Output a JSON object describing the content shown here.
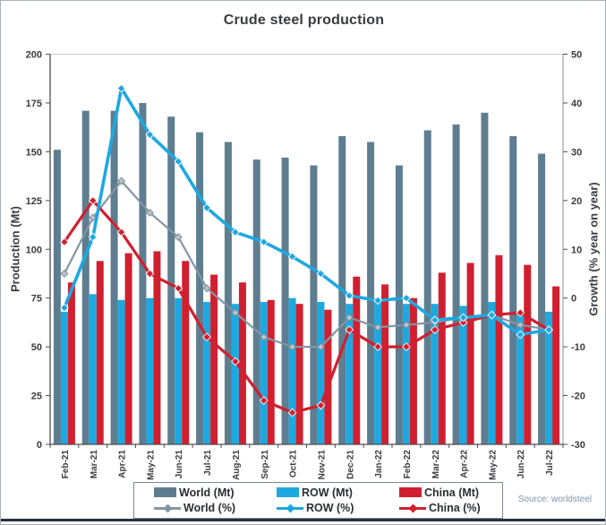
{
  "chart_data": {
    "type": "bar+line",
    "title": "Crude steel production",
    "source_note": "Source: worldsteel",
    "categories": [
      "Feb-21",
      "Mar-21",
      "Apr-21",
      "May-21",
      "Jun-21",
      "Jul-21",
      "Aug-21",
      "Sep-21",
      "Oct-21",
      "Nov-21",
      "Dec-21",
      "Jan-22",
      "Feb-22",
      "Mar-22",
      "Apr-22",
      "May-22",
      "Jun-22",
      "Jul-22"
    ],
    "left_axis": {
      "label": "Production (Mt)",
      "min": 0,
      "max": 200,
      "ticks": [
        0,
        25,
        50,
        75,
        100,
        125,
        150,
        175,
        200
      ]
    },
    "right_axis": {
      "label": "Growth (% year on year)",
      "min": -30,
      "max": 50,
      "ticks": [
        -30,
        -20,
        -10,
        0,
        10,
        20,
        30,
        40,
        50
      ]
    },
    "grid": "top line only",
    "legend_position": "bottom",
    "series": [
      {
        "name": "World (Mt)",
        "type": "bar",
        "axis": "left",
        "color": "#5e7d90",
        "values": [
          151,
          171,
          171,
          175,
          168,
          160,
          155,
          146,
          147,
          143,
          158,
          155,
          143,
          161,
          164,
          170,
          158,
          149
        ]
      },
      {
        "name": "ROW (Mt)",
        "type": "bar",
        "axis": "left",
        "color": "#1ea8e0",
        "values": [
          68,
          77,
          74,
          75,
          75,
          73,
          72,
          73,
          75,
          73,
          72,
          74,
          72,
          72,
          71,
          73,
          68,
          68
        ]
      },
      {
        "name": "China (Mt)",
        "type": "bar",
        "axis": "left",
        "color": "#d02030",
        "values": [
          83,
          94,
          98,
          99,
          94,
          87,
          83,
          74,
          72,
          69,
          86,
          82,
          75,
          88,
          93,
          97,
          92,
          81
        ]
      },
      {
        "name": "World (%)",
        "type": "line",
        "axis": "right",
        "color": "#8496a4",
        "marker_fill": "#b9c3cc",
        "marker_edge": "#77858f",
        "line_width": 2.2,
        "values": [
          5,
          16.5,
          24,
          17.5,
          12.5,
          2,
          -3,
          -8,
          -10,
          -10,
          -4,
          -6,
          -5.5,
          -5,
          -4,
          -3.5,
          -5.5,
          -6.5
        ]
      },
      {
        "name": "ROW (%)",
        "type": "line",
        "axis": "right",
        "color": "#1ea8e0",
        "marker_fill": "#1ea8e0",
        "marker_edge": "#ffffff",
        "line_width": 3.6,
        "values": [
          -2,
          12.5,
          43,
          33.5,
          28,
          18.5,
          13.5,
          11.5,
          8.5,
          5,
          0.5,
          -0.5,
          0,
          -4.5,
          -4,
          -3.5,
          -7.5,
          -6.5
        ]
      },
      {
        "name": "China (%)",
        "type": "line",
        "axis": "right",
        "color": "#d02030",
        "marker_fill": "#d02030",
        "marker_edge": "#ffffff",
        "line_width": 3.2,
        "values": [
          11.5,
          20,
          13.5,
          5,
          2,
          -8,
          -13,
          -21,
          -23.5,
          -22,
          -6.5,
          -10,
          -10,
          -6.5,
          -5,
          -3.5,
          -3,
          -6.5
        ]
      }
    ],
    "colors": {
      "world_bar": "#5e7d90",
      "row_bar": "#1ea8e0",
      "china_bar": "#d02030",
      "world_line": "#8496a4",
      "row_line": "#1ea8e0",
      "china_line": "#d02030",
      "axis": "#4d4d4d",
      "gridline": "#c5c9cd",
      "tick_text": "#3b3c40"
    }
  }
}
